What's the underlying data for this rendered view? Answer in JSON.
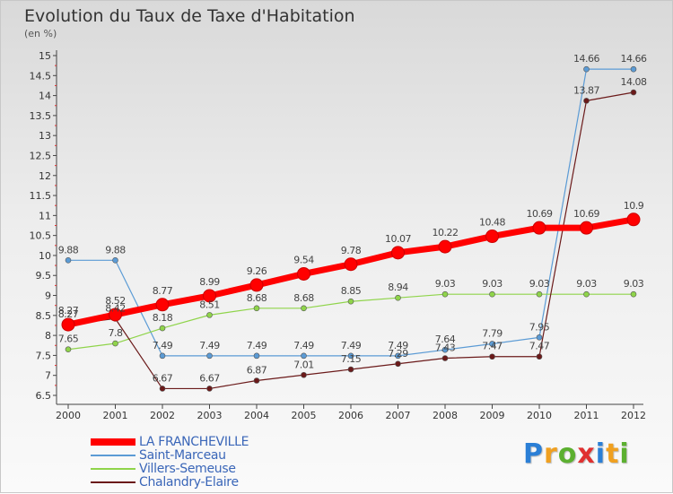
{
  "title": "Evolution du Taux de Taxe d'Habitation",
  "unit": "(en %)",
  "logo": {
    "letters": [
      "P",
      "r",
      "o",
      "x",
      "i",
      "t",
      "i"
    ],
    "colors": [
      "#2b7fd6",
      "#f0a020",
      "#5cb030",
      "#e03030",
      "#2b7fd6",
      "#f0a020",
      "#5cb030"
    ]
  },
  "chart_data": {
    "type": "line",
    "x": [
      "2000",
      "2001",
      "2002",
      "2003",
      "2004",
      "2005",
      "2006",
      "2007",
      "2008",
      "2009",
      "2010",
      "2011",
      "2012"
    ],
    "y_ticks": [
      "6.5",
      "7",
      "7.5",
      "8",
      "8.5",
      "9",
      "9.5",
      "10",
      "10.5",
      "11",
      "11.5",
      "12",
      "12.5",
      "13",
      "13.5",
      "14",
      "14.5",
      "15"
    ],
    "ylim": [
      6.5,
      15
    ],
    "grid": false,
    "legend_position": "bottom-left",
    "series": [
      {
        "name": "LA FRANCHEVILLE",
        "color": "#ff0000",
        "values": [
          8.27,
          8.52,
          8.77,
          8.99,
          9.26,
          9.54,
          9.78,
          10.07,
          10.22,
          10.48,
          10.69,
          10.69,
          10.9
        ],
        "labels": [
          "8.27",
          "8.52",
          "8.77",
          "8.99",
          "9.26",
          "9.54",
          "9.78",
          "10.07",
          "10.22",
          "10.48",
          "10.69",
          "10.69",
          "10.9"
        ]
      },
      {
        "name": "Saint-Marceau",
        "color": "#5b9bd5",
        "values": [
          9.88,
          9.88,
          7.49,
          7.49,
          7.49,
          7.49,
          7.49,
          7.49,
          7.64,
          7.79,
          7.95,
          14.66,
          14.66
        ],
        "labels": [
          "9.88",
          "9.88",
          "7.49",
          "7.49",
          "7.49",
          "7.49",
          "7.49",
          "7.49",
          "7.64",
          "7.79",
          "7.95",
          "14.66",
          "14.66"
        ]
      },
      {
        "name": "Villers-Semeuse",
        "color": "#8fd44a",
        "values": [
          7.65,
          7.8,
          8.18,
          8.51,
          8.68,
          8.68,
          8.85,
          8.94,
          9.03,
          9.03,
          9.03,
          9.03,
          9.03
        ],
        "labels": [
          "7.65",
          "7.8",
          "8.18",
          "8.51",
          "8.68",
          "8.68",
          "8.85",
          "8.94",
          "9.03",
          "9.03",
          "9.03",
          "9.03",
          "9.03"
        ]
      },
      {
        "name": "Chalandry-Elaire",
        "color": "#6b1a1a",
        "values": [
          8.27,
          8.42,
          6.67,
          6.67,
          6.87,
          7.01,
          7.15,
          7.29,
          7.43,
          7.47,
          7.47,
          13.87,
          14.08
        ],
        "labels": [
          "8.27",
          "8.42",
          "6.67",
          "6.67",
          "6.87",
          "7.01",
          "7.15",
          "7.29",
          "7.43",
          "7.47",
          "7.47",
          "13.87",
          "14.08"
        ]
      }
    ]
  }
}
